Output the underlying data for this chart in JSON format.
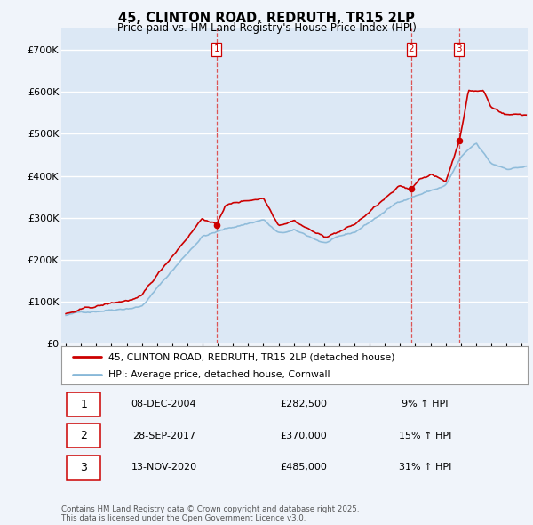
{
  "title": "45, CLINTON ROAD, REDRUTH, TR15 2LP",
  "subtitle": "Price paid vs. HM Land Registry's House Price Index (HPI)",
  "bg_color": "#f0f4fa",
  "plot_bg_color": "#dce8f5",
  "grid_color": "#ffffff",
  "red_line_color": "#cc0000",
  "blue_line_color": "#88b8d8",
  "transaction_line_color": "#dd4444",
  "ylim": [
    0,
    750000
  ],
  "yticks": [
    0,
    100000,
    200000,
    300000,
    400000,
    500000,
    600000,
    700000
  ],
  "ytick_labels": [
    "£0",
    "£100K",
    "£200K",
    "£300K",
    "£400K",
    "£500K",
    "£600K",
    "£700K"
  ],
  "xlim_start": 1994.7,
  "xlim_end": 2025.4,
  "transactions": [
    {
      "num": 1,
      "year": 2004.92,
      "price": 282500,
      "date": "08-DEC-2004",
      "pct": "9%",
      "x_line": 2004.92
    },
    {
      "num": 2,
      "year": 2017.74,
      "price": 370000,
      "date": "28-SEP-2017",
      "pct": "15%",
      "x_line": 2017.74
    },
    {
      "num": 3,
      "year": 2020.87,
      "price": 485000,
      "date": "13-NOV-2020",
      "pct": "31%",
      "x_line": 2020.87
    }
  ],
  "legend_label_red": "45, CLINTON ROAD, REDRUTH, TR15 2LP (detached house)",
  "legend_label_blue": "HPI: Average price, detached house, Cornwall",
  "footnote": "Contains HM Land Registry data © Crown copyright and database right 2025.\nThis data is licensed under the Open Government Licence v3.0.",
  "table_rows": [
    {
      "num": 1,
      "date": "08-DEC-2004",
      "price": "£282,500",
      "hpi": "9% ↑ HPI"
    },
    {
      "num": 2,
      "date": "28-SEP-2017",
      "price": "£370,000",
      "hpi": "15% ↑ HPI"
    },
    {
      "num": 3,
      "date": "13-NOV-2020",
      "price": "£485,000",
      "hpi": "31% ↑ HPI"
    }
  ]
}
